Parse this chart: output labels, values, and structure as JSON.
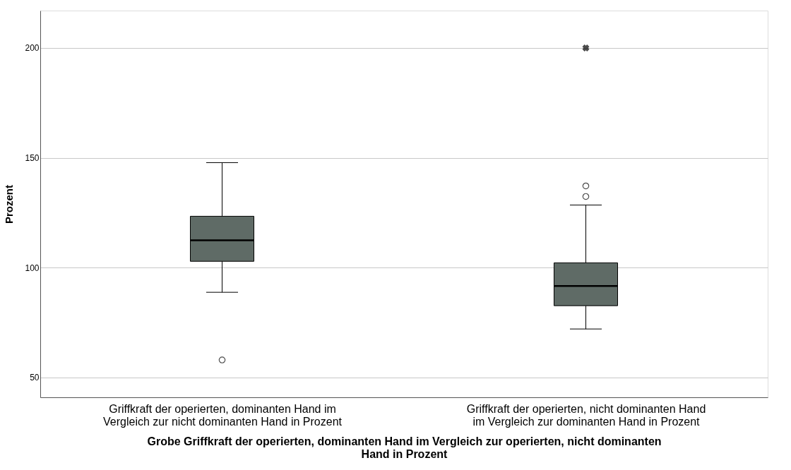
{
  "chart_data": {
    "type": "box",
    "categories": [
      "Griffkraft der operierten, dominanten Hand im Vergleich zur nicht dominanten Hand in Prozent",
      "Griffkraft der operierten, nicht dominanten Hand im Vergleich zur dominanten Hand in Prozent"
    ],
    "boxes": [
      {
        "low": 88.8,
        "q1": 102.9,
        "median": 112.5,
        "q3": 123.4,
        "high": 147.8,
        "outliers": [
          58
        ]
      },
      {
        "low": 72.1,
        "q1": 82.7,
        "median": 91.7,
        "q3": 102.2,
        "high": 128.5,
        "outliers": [
          132.4,
          137.2,
          200
        ]
      }
    ],
    "color": "#5f6b66",
    "xlabel": "Grobe Griffkraft der operierten, dominanten Hand im Vergleich zur operierten, nicht dominanten Hand in Prozent",
    "ylabel": "Prozent",
    "ylim": [
      41,
      217
    ],
    "yticks": [
      50,
      100,
      150,
      200
    ],
    "grid": "y"
  }
}
